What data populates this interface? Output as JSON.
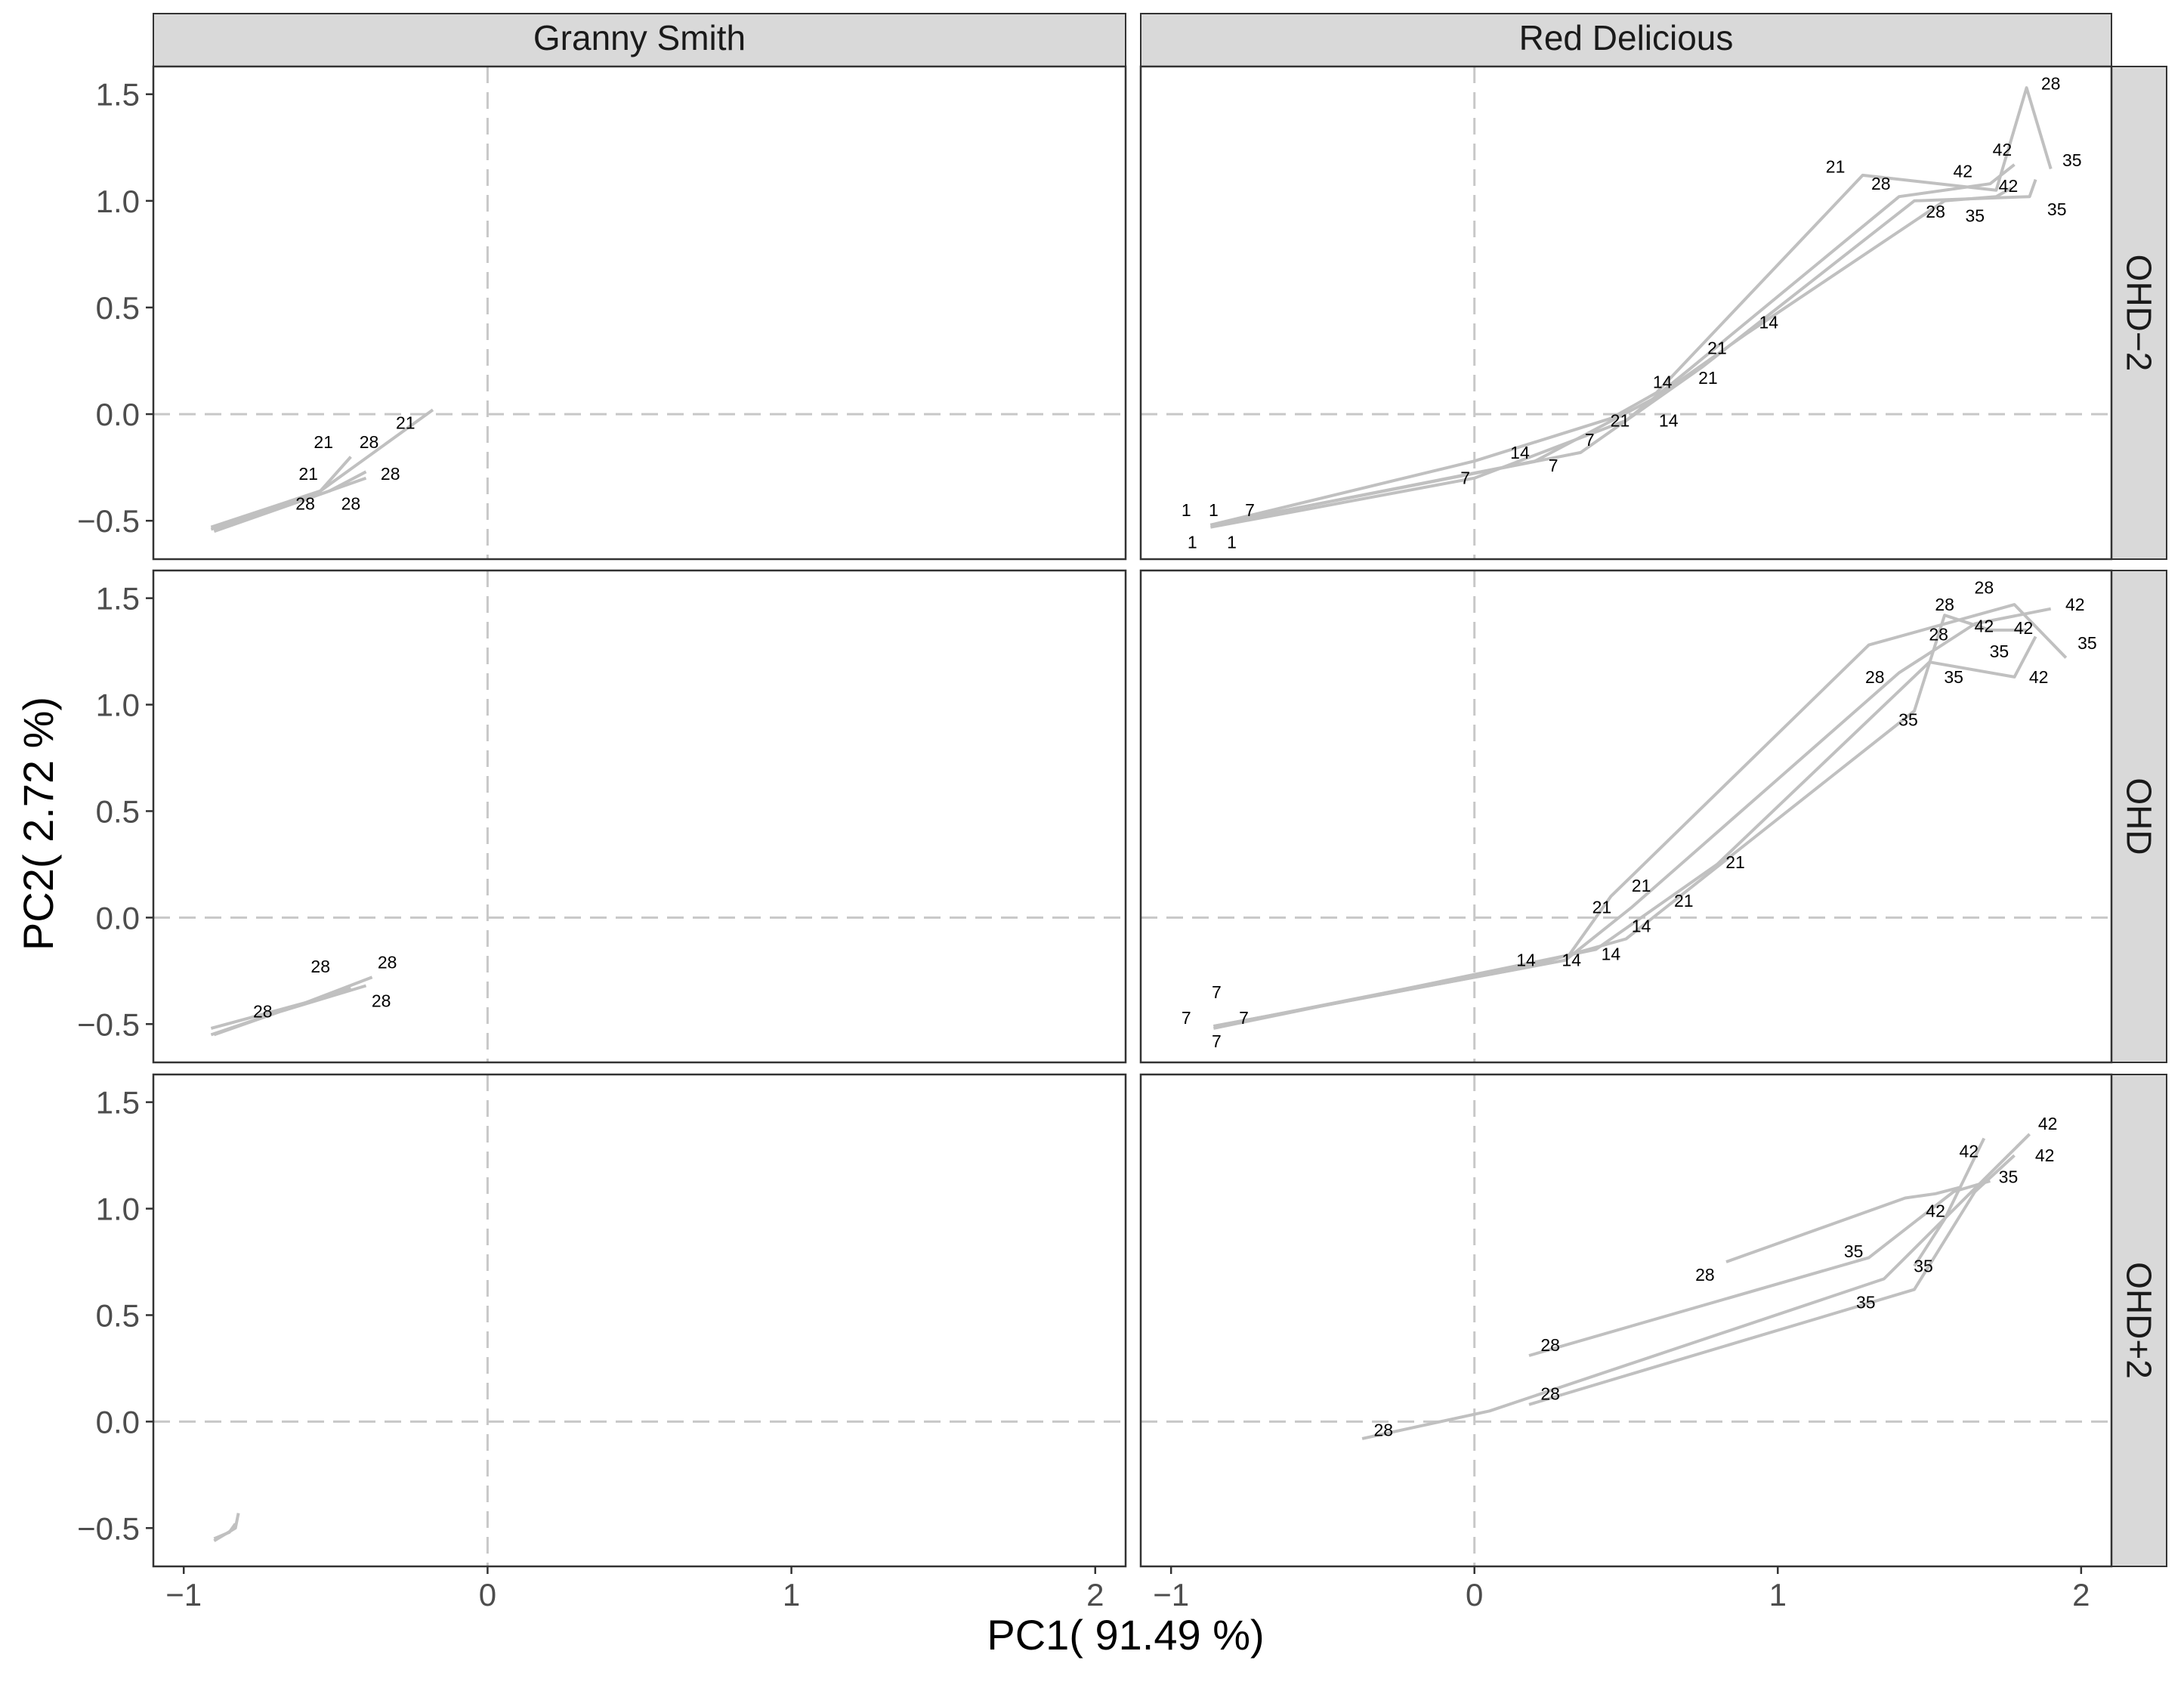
{
  "chart_data": {
    "type": "line",
    "xlabel": "PC1( 91.49 %)",
    "ylabel": "PC2( 2.72 %)",
    "xlim": [
      -1.1,
      2.1
    ],
    "ylim": [
      -0.68,
      1.63
    ],
    "x_ticks": [
      -1,
      0,
      1,
      2
    ],
    "y_ticks": [
      -0.5,
      0.0,
      0.5,
      1.0,
      1.5
    ],
    "x_tick_labels": [
      "−1",
      "0",
      "1",
      "2"
    ],
    "y_tick_labels": [
      "−0.5",
      "0.0",
      "0.5",
      "1.0",
      "1.5"
    ],
    "columns": [
      "Granny Smith",
      "Red Delicious"
    ],
    "rows": [
      "OHD−2",
      "OHD",
      "OHD+2"
    ],
    "reference_lines": {
      "x": 0,
      "y": 0,
      "style": "dashed",
      "color": "#c8c8c8"
    },
    "grid": false,
    "line_color": "#c0c0c0",
    "panel_strip_color": "#d9d9d9",
    "panels": [
      {
        "column": "Granny Smith",
        "row": "OHD−2",
        "series": [
          {
            "x": [
              -0.91,
              -0.55,
              -0.45
            ],
            "y": [
              -0.53,
              -0.36,
              -0.2
            ]
          },
          {
            "x": [
              -0.9,
              -0.52,
              -0.4
            ],
            "y": [
              -0.55,
              -0.36,
              -0.27
            ]
          },
          {
            "x": [
              -0.91,
              -0.6,
              -0.4
            ],
            "y": [
              -0.54,
              -0.4,
              -0.3
            ]
          },
          {
            "x": [
              -0.9,
              -0.55,
              -0.18
            ],
            "y": [
              -0.54,
              -0.36,
              0.02
            ]
          }
        ],
        "labels": [
          {
            "x": -0.27,
            "y": -0.04,
            "text": "21"
          },
          {
            "x": -0.54,
            "y": -0.13,
            "text": "21"
          },
          {
            "x": -0.39,
            "y": -0.13,
            "text": "28"
          },
          {
            "x": -0.59,
            "y": -0.28,
            "text": "21"
          },
          {
            "x": -0.32,
            "y": -0.28,
            "text": "28"
          },
          {
            "x": -0.6,
            "y": -0.42,
            "text": "28"
          },
          {
            "x": -0.45,
            "y": -0.42,
            "text": "28"
          }
        ]
      },
      {
        "column": "Red Delicious",
        "row": "OHD−2",
        "series": [
          {
            "x": [
              -0.87,
              0.0,
              0.45,
              0.6,
              1.28,
              1.72,
              1.82,
              1.9
            ],
            "y": [
              -0.52,
              -0.22,
              -0.02,
              0.1,
              1.12,
              1.05,
              1.53,
              1.15
            ]
          },
          {
            "x": [
              -0.87,
              0.0,
              0.5,
              0.7,
              1.4,
              1.7,
              1.78
            ],
            "y": [
              -0.53,
              -0.3,
              -0.03,
              0.2,
              1.02,
              1.08,
              1.17
            ]
          },
          {
            "x": [
              -0.87,
              0.1,
              0.35,
              0.75,
              1.45,
              1.83,
              1.85
            ],
            "y": [
              -0.52,
              -0.25,
              -0.18,
              0.22,
              1.0,
              1.02,
              1.1
            ]
          },
          {
            "x": [
              -0.87,
              0.2,
              0.6,
              0.9,
              1.55,
              1.72,
              1.77
            ],
            "y": [
              -0.52,
              -0.22,
              0.08,
              0.38,
              1.0,
              1.02,
              1.06
            ]
          }
        ],
        "labels": [
          {
            "x": 1.9,
            "y": 1.55,
            "text": "28"
          },
          {
            "x": 1.74,
            "y": 1.24,
            "text": "42"
          },
          {
            "x": 1.97,
            "y": 1.19,
            "text": "35"
          },
          {
            "x": 1.19,
            "y": 1.16,
            "text": "21"
          },
          {
            "x": 1.61,
            "y": 1.14,
            "text": "42"
          },
          {
            "x": 1.34,
            "y": 1.08,
            "text": "28"
          },
          {
            "x": 1.76,
            "y": 1.07,
            "text": "42"
          },
          {
            "x": 1.52,
            "y": 0.95,
            "text": "28"
          },
          {
            "x": 1.65,
            "y": 0.93,
            "text": "35"
          },
          {
            "x": 1.92,
            "y": 0.96,
            "text": "35"
          },
          {
            "x": 0.97,
            "y": 0.43,
            "text": "14"
          },
          {
            "x": 0.8,
            "y": 0.31,
            "text": "21"
          },
          {
            "x": 0.77,
            "y": 0.17,
            "text": "21"
          },
          {
            "x": 0.62,
            "y": 0.15,
            "text": "14"
          },
          {
            "x": 0.48,
            "y": -0.03,
            "text": "21"
          },
          {
            "x": 0.64,
            "y": -0.03,
            "text": "14"
          },
          {
            "x": 0.38,
            "y": -0.12,
            "text": "7"
          },
          {
            "x": 0.15,
            "y": -0.18,
            "text": "14"
          },
          {
            "x": 0.26,
            "y": -0.24,
            "text": "7"
          },
          {
            "x": -0.03,
            "y": -0.3,
            "text": "7"
          },
          {
            "x": -0.95,
            "y": -0.45,
            "text": "1"
          },
          {
            "x": -0.86,
            "y": -0.45,
            "text": "1"
          },
          {
            "x": -0.74,
            "y": -0.45,
            "text": "7"
          },
          {
            "x": -0.93,
            "y": -0.6,
            "text": "1"
          },
          {
            "x": -0.8,
            "y": -0.6,
            "text": "1"
          }
        ]
      },
      {
        "column": "Granny Smith",
        "row": "OHD",
        "series": [
          {
            "x": [
              -0.91,
              -0.6,
              -0.38
            ],
            "y": [
              -0.52,
              -0.4,
              -0.28
            ]
          },
          {
            "x": [
              -0.91,
              -0.6,
              -0.45
            ],
            "y": [
              -0.55,
              -0.4,
              -0.33
            ]
          },
          {
            "x": [
              -0.9,
              -0.68,
              -0.4
            ],
            "y": [
              -0.55,
              -0.44,
              -0.32
            ]
          }
        ],
        "labels": [
          {
            "x": -0.55,
            "y": -0.23,
            "text": "28"
          },
          {
            "x": -0.33,
            "y": -0.21,
            "text": "28"
          },
          {
            "x": -0.74,
            "y": -0.44,
            "text": "28"
          },
          {
            "x": -0.35,
            "y": -0.39,
            "text": "28"
          }
        ]
      },
      {
        "column": "Red Delicious",
        "row": "OHD",
        "series": [
          {
            "x": [
              -0.86,
              0.3,
              0.52,
              1.4,
              1.65,
              1.9
            ],
            "y": [
              -0.51,
              -0.2,
              0.05,
              1.15,
              1.38,
              1.45
            ]
          },
          {
            "x": [
              -0.86,
              0.3,
              0.45,
              1.3,
              1.78,
              1.95
            ],
            "y": [
              -0.51,
              -0.2,
              0.1,
              1.28,
              1.47,
              1.22
            ]
          },
          {
            "x": [
              -0.85,
              0.25,
              0.5,
              1.45,
              1.55,
              1.7,
              1.82
            ],
            "y": [
              -0.51,
              -0.2,
              -0.1,
              0.97,
              1.42,
              1.35,
              1.35
            ]
          },
          {
            "x": [
              -0.86,
              0.4,
              0.8,
              1.5,
              1.78,
              1.85
            ],
            "y": [
              -0.52,
              -0.15,
              0.25,
              1.2,
              1.13,
              1.32
            ]
          }
        ],
        "labels": [
          {
            "x": 1.68,
            "y": 1.55,
            "text": "28"
          },
          {
            "x": 1.55,
            "y": 1.47,
            "text": "28"
          },
          {
            "x": 1.98,
            "y": 1.47,
            "text": "42"
          },
          {
            "x": 1.68,
            "y": 1.37,
            "text": "42"
          },
          {
            "x": 1.81,
            "y": 1.36,
            "text": "42"
          },
          {
            "x": 1.53,
            "y": 1.33,
            "text": "28"
          },
          {
            "x": 2.02,
            "y": 1.29,
            "text": "35"
          },
          {
            "x": 1.73,
            "y": 1.25,
            "text": "35"
          },
          {
            "x": 1.32,
            "y": 1.13,
            "text": "28"
          },
          {
            "x": 1.58,
            "y": 1.13,
            "text": "35"
          },
          {
            "x": 1.86,
            "y": 1.13,
            "text": "42"
          },
          {
            "x": 1.43,
            "y": 0.93,
            "text": "35"
          },
          {
            "x": 0.86,
            "y": 0.26,
            "text": "21"
          },
          {
            "x": 0.55,
            "y": 0.15,
            "text": "21"
          },
          {
            "x": 0.42,
            "y": 0.05,
            "text": "21"
          },
          {
            "x": 0.69,
            "y": 0.08,
            "text": "21"
          },
          {
            "x": 0.55,
            "y": -0.04,
            "text": "14"
          },
          {
            "x": 0.45,
            "y": -0.17,
            "text": "14"
          },
          {
            "x": 0.17,
            "y": -0.2,
            "text": "14"
          },
          {
            "x": 0.32,
            "y": -0.2,
            "text": "14"
          },
          {
            "x": -0.85,
            "y": -0.35,
            "text": "7"
          },
          {
            "x": -0.95,
            "y": -0.47,
            "text": "7"
          },
          {
            "x": -0.76,
            "y": -0.47,
            "text": "7"
          },
          {
            "x": -0.85,
            "y": -0.58,
            "text": "7"
          }
        ]
      },
      {
        "column": "Granny Smith",
        "row": "OHD+2",
        "series": [
          {
            "x": [
              -0.9,
              -0.83,
              -0.82
            ],
            "y": [
              -0.56,
              -0.5,
              -0.43
            ]
          },
          {
            "x": [
              -0.9,
              -0.85,
              -0.83
            ],
            "y": [
              -0.55,
              -0.52,
              -0.48
            ]
          }
        ],
        "labels": []
      },
      {
        "column": "Red Delicious",
        "row": "OHD+2",
        "series": [
          {
            "x": [
              -0.37,
              0.05,
              1.35,
              1.83
            ],
            "y": [
              -0.08,
              0.05,
              0.67,
              1.35
            ]
          },
          {
            "x": [
              0.18,
              1.45,
              1.65,
              1.78
            ],
            "y": [
              0.08,
              0.62,
              1.08,
              1.25
            ]
          },
          {
            "x": [
              0.18,
              1.3,
              1.58,
              1.7
            ],
            "y": [
              0.31,
              0.77,
              1.08,
              1.13
            ]
          },
          {
            "x": [
              0.83,
              1.42,
              1.52,
              1.6
            ],
            "y": [
              0.75,
              1.05,
              1.07,
              1.1
            ]
          },
          {
            "x": [
              1.45,
              1.55,
              1.68
            ],
            "y": [
              0.73,
              0.95,
              1.33
            ]
          }
        ],
        "labels": [
          {
            "x": 1.89,
            "y": 1.4,
            "text": "42"
          },
          {
            "x": 1.63,
            "y": 1.27,
            "text": "42"
          },
          {
            "x": 1.88,
            "y": 1.25,
            "text": "42"
          },
          {
            "x": 1.76,
            "y": 1.15,
            "text": "35"
          },
          {
            "x": 1.52,
            "y": 0.99,
            "text": "42"
          },
          {
            "x": 1.25,
            "y": 0.8,
            "text": "35"
          },
          {
            "x": 0.76,
            "y": 0.69,
            "text": "28"
          },
          {
            "x": 1.48,
            "y": 0.73,
            "text": "35"
          },
          {
            "x": 1.29,
            "y": 0.56,
            "text": "35"
          },
          {
            "x": 0.25,
            "y": 0.36,
            "text": "28"
          },
          {
            "x": 0.25,
            "y": 0.13,
            "text": "28"
          },
          {
            "x": -0.3,
            "y": -0.04,
            "text": "28"
          }
        ]
      }
    ]
  }
}
